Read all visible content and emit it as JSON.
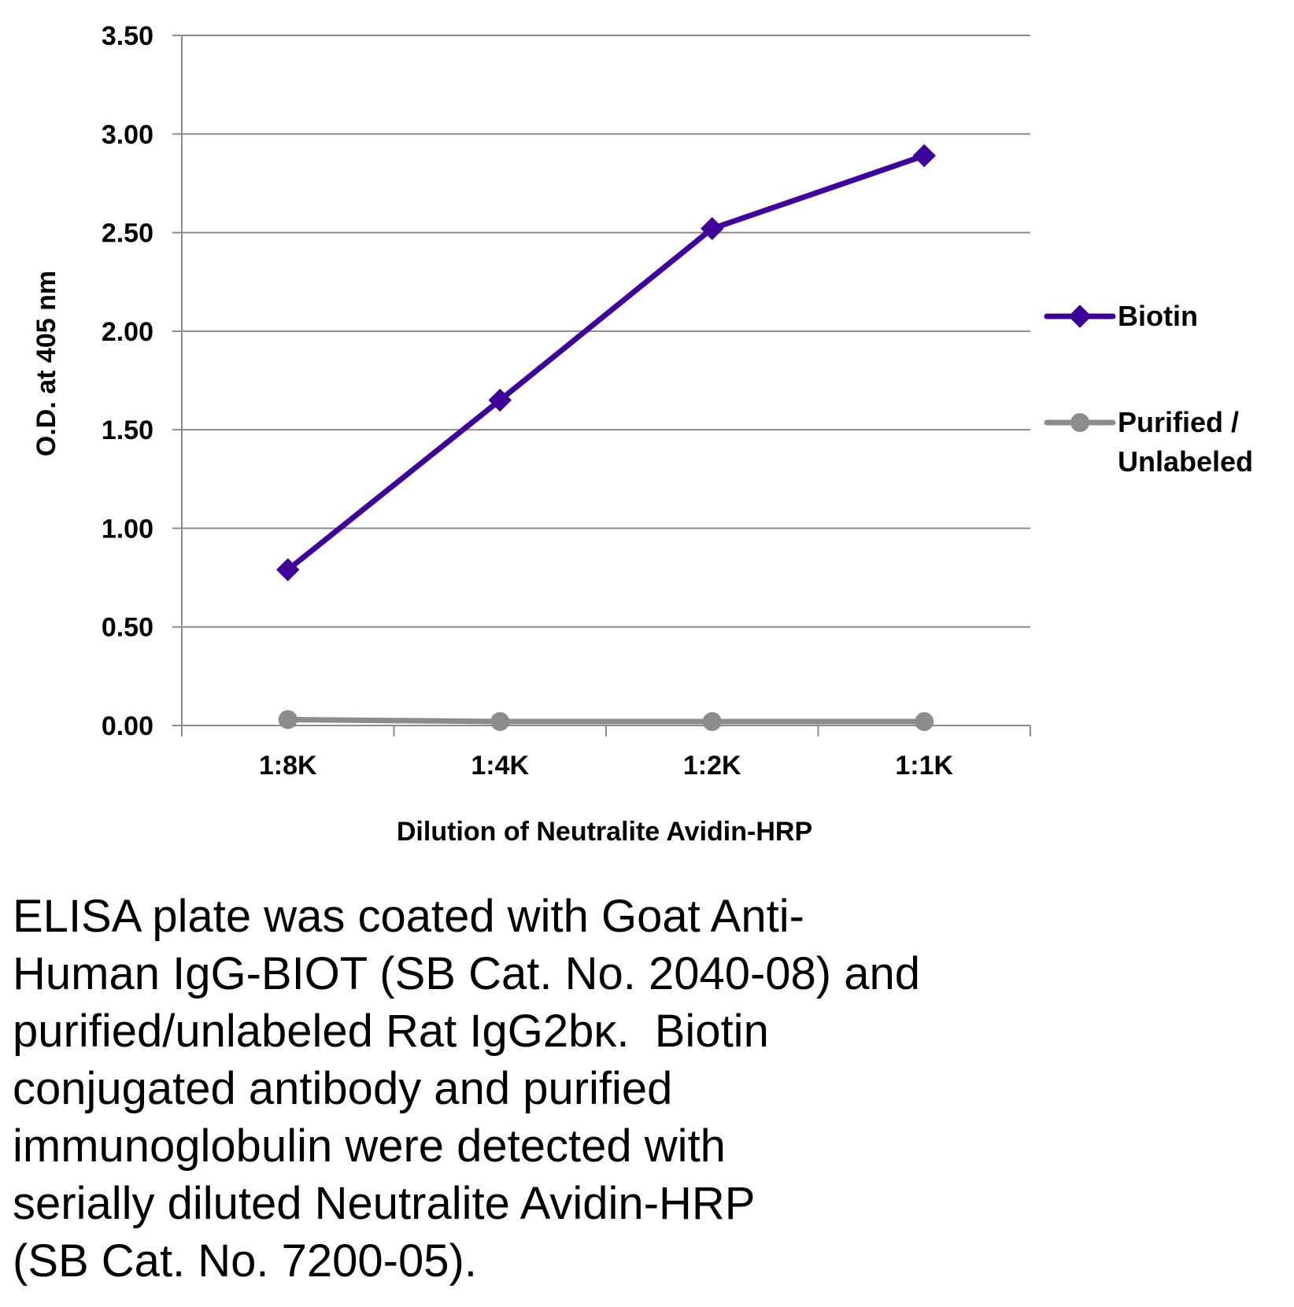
{
  "chart_data": {
    "type": "line",
    "categories": [
      "1:8K",
      "1:4K",
      "1:2K",
      "1:1K"
    ],
    "series": [
      {
        "name": "Biotin",
        "values": [
          0.79,
          1.65,
          2.52,
          2.89
        ],
        "color": "#3d0099",
        "marker": "diamond"
      },
      {
        "name": "Purified / Unlabeled",
        "name_lines": [
          "Purified /",
          "Unlabeled"
        ],
        "values": [
          0.03,
          0.02,
          0.02,
          0.02
        ],
        "color": "#8c8c8c",
        "marker": "circle"
      }
    ],
    "xlabel": "Dilution of Neutralite Avidin-HRP",
    "ylabel": "O.D. at 405 nm",
    "ylim": [
      0,
      3.5
    ],
    "yticks": [
      "0.00",
      "0.50",
      "1.00",
      "1.50",
      "2.00",
      "2.50",
      "3.00",
      "3.50"
    ],
    "grid": true,
    "legend": "right",
    "gridline_color": "#8c8c8c"
  },
  "caption": {
    "lines": [
      "ELISA plate was coated with Goat Anti-",
      "Human IgG-BIOT (SB Cat. No. 2040-08) and",
      "purified/unlabeled Rat IgG2bκ.  Biotin",
      "conjugated antibody and purified",
      "immunoglobulin were detected with",
      "serially diluted Neutralite Avidin-HRP",
      "(SB Cat. No. 7200-05)."
    ]
  }
}
